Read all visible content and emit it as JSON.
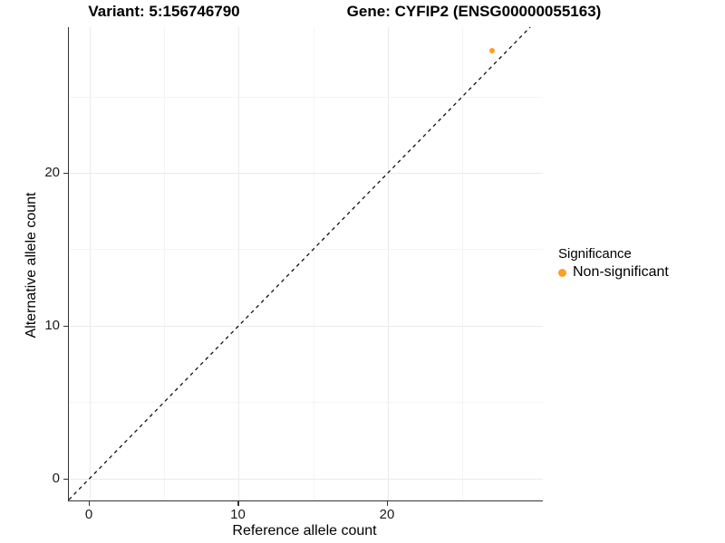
{
  "page": {
    "background": "#FFFFFF"
  },
  "chart_data": {
    "type": "scatter",
    "title_left": "Variant: 5:156746790",
    "title_right": "Gene: CYFIP2 (ENSG00000055163)",
    "xlabel": "Reference allele count",
    "ylabel": "Alternative allele count",
    "xlim": [
      -1.4,
      30.4
    ],
    "ylim": [
      -1.45,
      29.55
    ],
    "x_ticks": [
      0,
      10,
      20
    ],
    "y_ticks": [
      0,
      10,
      20
    ],
    "x_minor_ticks": [
      5,
      15,
      25
    ],
    "y_minor_ticks": [
      5,
      15,
      25
    ],
    "grid": "on",
    "identity_line": {
      "slope": 1,
      "intercept": 0,
      "style": "dashed",
      "color": "#111111"
    },
    "series": [
      {
        "name": "Non-significant",
        "color": "#FAA028",
        "points": [
          {
            "x": 27,
            "y": 28
          }
        ]
      }
    ],
    "legend": {
      "title": "Significance",
      "position": "right",
      "entries": [
        {
          "label": "Non-significant",
          "color": "#FAA028",
          "marker": "dot"
        }
      ]
    }
  },
  "colors": {
    "axis_line": "#333333",
    "grid_major": "#EBEBEB",
    "grid_minor": "#F4F4F4",
    "identity_line": "#111111",
    "point": "#FAA028",
    "text": "#000000"
  }
}
